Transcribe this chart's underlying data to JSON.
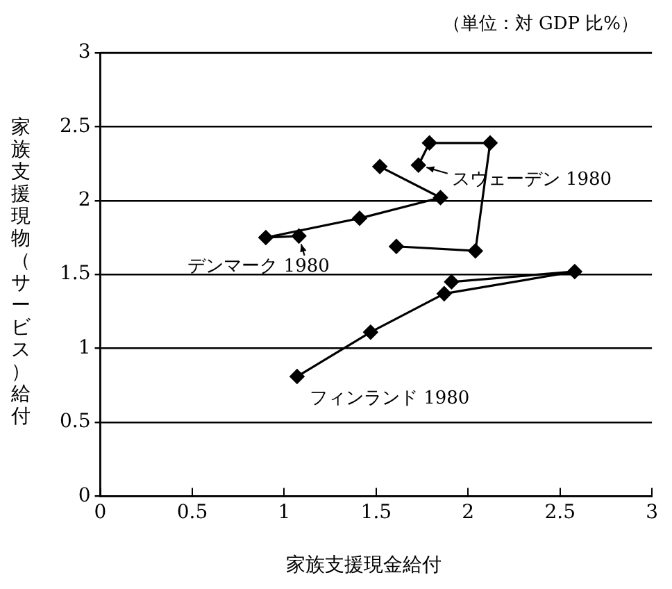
{
  "chart_data": {
    "type": "line",
    "xlabel": "家族支援現金給付",
    "ylabel": "家族支援現物（サービス）給付",
    "series": [
      {
        "color": "#000000",
        "x": [
          1.73,
          1.79,
          2.12,
          2.04,
          1.61
        ],
        "values": [
          2.24,
          2.39,
          2.39,
          1.66,
          1.69
        ]
      },
      {
        "color": "#000000",
        "x": [
          1.08,
          0.9,
          1.41,
          1.85,
          1.52
        ],
        "values": [
          1.76,
          1.75,
          1.88,
          2.02,
          2.23
        ]
      },
      {
        "color": "#000000",
        "x": [
          1.07,
          1.47,
          1.87,
          2.58,
          1.91
        ],
        "values": [
          0.81,
          1.11,
          1.37,
          1.52,
          1.45
        ]
      }
    ],
    "xlim": [
      0,
      3
    ],
    "xticks": [
      0,
      0.5,
      1,
      1.5,
      2,
      2.5,
      3
    ],
    "ylim": [
      0,
      3
    ],
    "yticks": [
      0,
      0.5,
      1,
      1.5,
      2,
      2.5,
      3
    ],
    "grid": "y",
    "marker": "diamond",
    "legend": false,
    "annotations": [
      "（単位：対 GDP 比%）",
      {
        "text": "スウェーデン 1980",
        "x": 1.73,
        "y": 2.24
      },
      {
        "text": "デンマーク 1980",
        "x": 1.08,
        "y": 1.76
      },
      {
        "text": "フィンランド 1980",
        "x": 1.07,
        "y": 0.81
      }
    ]
  }
}
